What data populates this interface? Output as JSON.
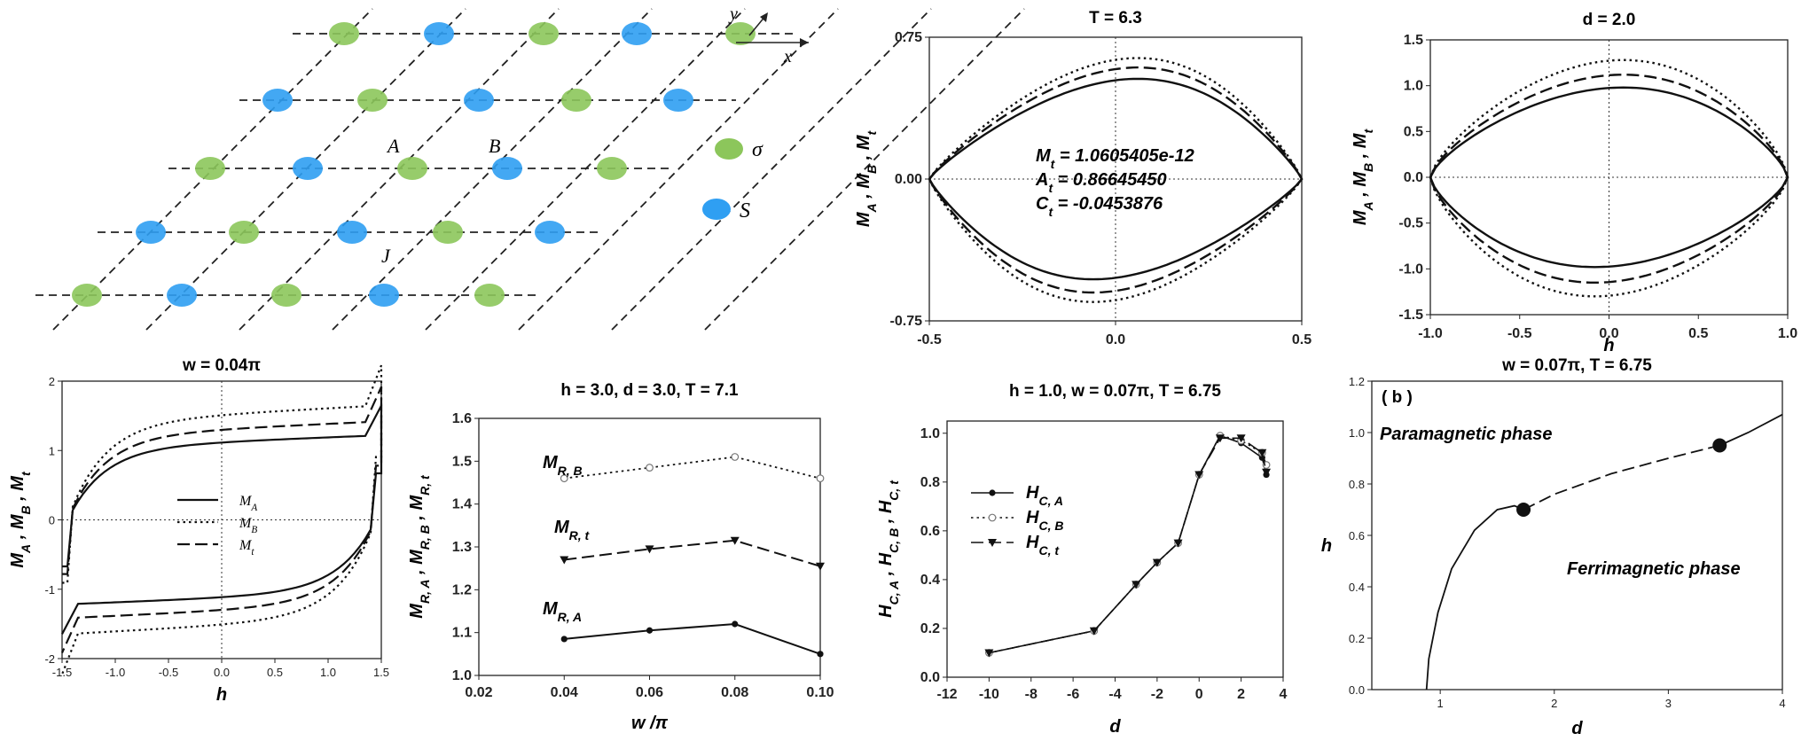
{
  "chart_data": [
    {
      "panel": "lattice",
      "type": "diagram",
      "axis_x": "x",
      "axis_y": "y",
      "site_labels": [
        "A",
        "B",
        "J"
      ],
      "legend": [
        {
          "name": "σ",
          "color": "#8cc65b"
        },
        {
          "name": "S",
          "color": "#2f9ff2"
        }
      ]
    },
    {
      "panel": "T63",
      "type": "line",
      "title": "T = 6.3",
      "ylabel": "M_A , M_B , M_t",
      "xlim": [
        -0.5,
        0.5
      ],
      "ylim": [
        -0.75,
        0.75
      ],
      "xticks": [
        "-0.5",
        "0.0",
        "0.5"
      ],
      "yticks": [
        "-0.75",
        "0.00",
        "0.75"
      ],
      "annotations": [
        "M_t = 1.0605405e-12",
        "A_t = 0.86645450",
        "C_t = -0.0453876"
      ],
      "series": [
        {
          "style": "solid",
          "h_end": 0.5,
          "M_top": 0.53,
          "M_bottom": -0.53
        },
        {
          "style": "dashed",
          "h_end": 0.5,
          "M_top": 0.59,
          "M_bottom": -0.6
        },
        {
          "style": "dotted",
          "h_end": 0.5,
          "M_top": 0.64,
          "M_bottom": -0.65
        }
      ]
    },
    {
      "panel": "d20",
      "type": "line",
      "title": "d = 2.0",
      "ylabel": "M_A , M_B , M_t",
      "xlabel": "h",
      "xlim": [
        -1.0,
        1.0
      ],
      "ylim": [
        -1.5,
        1.5
      ],
      "xticks": [
        "-1.0",
        "-0.5",
        "0.0",
        "0.5",
        "1.0"
      ],
      "yticks": [
        "-1.5",
        "-1.0",
        "-0.5",
        "0.0",
        "0.5",
        "1.0",
        "1.5"
      ],
      "series": [
        {
          "style": "solid",
          "h_end": 1.0,
          "M_top": 0.98,
          "M_bottom": -0.98
        },
        {
          "style": "dashed",
          "h_end": 1.0,
          "M_top": 1.12,
          "M_bottom": -1.15
        },
        {
          "style": "dotted",
          "h_end": 1.0,
          "M_top": 1.28,
          "M_bottom": -1.3
        }
      ]
    },
    {
      "panel": "w004",
      "type": "line",
      "title": "w = 0.04π",
      "xlabel": "h",
      "ylabel": "M_A , M_B , M_t",
      "xlim": [
        -1.5,
        1.5
      ],
      "ylim": [
        -2,
        2
      ],
      "xticks": [
        "-1.5",
        "-1.0",
        "-0.5",
        "0.0",
        "0.5",
        "1.0",
        "1.5"
      ],
      "yticks": [
        "-2",
        "-1",
        "0",
        "1",
        "2"
      ],
      "legend": [
        "M_A",
        "M_B",
        "M_t"
      ],
      "series": [
        {
          "name": "M_A",
          "style": "solid",
          "h_end": 1.5,
          "M_top": 1.22,
          "M_bottom": -1.22
        },
        {
          "name": "M_B",
          "style": "dotted",
          "h_end": 1.5,
          "M_top": 1.65,
          "M_bottom": -1.65
        },
        {
          "name": "M_t",
          "style": "dashed",
          "h_end": 1.5,
          "M_top": 1.42,
          "M_bottom": -1.42
        }
      ]
    },
    {
      "panel": "MR",
      "type": "line",
      "title": "h = 3.0, d = 3.0, T = 7.1",
      "xlabel": "w /π",
      "ylabel": "M_R, A , M_R, B , M_R, t",
      "xlim": [
        0.02,
        0.1
      ],
      "ylim": [
        1.0,
        1.6
      ],
      "xticks": [
        "0.02",
        "0.04",
        "0.06",
        "0.08",
        "0.10"
      ],
      "yticks": [
        "1.0",
        "1.1",
        "1.2",
        "1.3",
        "1.4",
        "1.5",
        "1.6"
      ],
      "x": [
        0.04,
        0.06,
        0.08,
        0.1
      ],
      "series": [
        {
          "name": "M_R, B",
          "style": "dotted",
          "marker": "open-circle",
          "values": [
            1.46,
            1.485,
            1.51,
            1.46
          ]
        },
        {
          "name": "M_R, t",
          "style": "dashed",
          "marker": "triangle",
          "values": [
            1.27,
            1.295,
            1.315,
            1.255
          ]
        },
        {
          "name": "M_R, A",
          "style": "solid",
          "marker": "dot",
          "values": [
            1.085,
            1.105,
            1.12,
            1.05
          ]
        }
      ]
    },
    {
      "panel": "HC",
      "type": "line",
      "title": "h = 1.0, w = 0.07π, T = 6.75",
      "xlabel": "d",
      "ylabel": "H_C, A , H_C, B , H_C, t",
      "xlim": [
        -12,
        4
      ],
      "ylim": [
        0.0,
        1.05
      ],
      "xticks": [
        "-12",
        "-10",
        "-8",
        "-6",
        "-4",
        "-2",
        "0",
        "2",
        "4"
      ],
      "yticks": [
        "0.0",
        "0.2",
        "0.4",
        "0.6",
        "0.8",
        "1.0"
      ],
      "legend": [
        "H_C, A",
        "H_C, B",
        "H_C, t"
      ],
      "series": [
        {
          "name": "H_C, A",
          "style": "solid",
          "marker": "dot",
          "x": [
            -10,
            -5,
            -3,
            -2,
            -1,
            0,
            1,
            2,
            3,
            3.2
          ],
          "values": [
            0.1,
            0.19,
            0.38,
            0.47,
            0.55,
            0.83,
            0.99,
            0.96,
            0.9,
            0.83
          ]
        },
        {
          "name": "H_C, B",
          "style": "dotted",
          "marker": "open-circle",
          "x": [
            -10,
            -5,
            -3,
            -2,
            -1,
            0,
            1,
            2,
            3,
            3.2
          ],
          "values": [
            0.1,
            0.19,
            0.38,
            0.47,
            0.55,
            0.83,
            0.99,
            0.97,
            0.92,
            0.87
          ]
        },
        {
          "name": "H_C, t",
          "style": "dashed",
          "marker": "triangle",
          "x": [
            -10,
            -5,
            -3,
            -2,
            -1,
            0,
            1,
            2,
            3,
            3.2
          ],
          "values": [
            0.1,
            0.19,
            0.38,
            0.47,
            0.55,
            0.83,
            0.98,
            0.98,
            0.92,
            0.84
          ]
        }
      ]
    },
    {
      "panel": "phase",
      "type": "line",
      "title": "w = 0.07π, T = 6.75",
      "panel_label": "( b )",
      "xlabel": "d",
      "ylabel": "h",
      "xlim": [
        0.4,
        4
      ],
      "ylim": [
        0.0,
        1.2
      ],
      "xticks": [
        "1",
        "2",
        "3",
        "4"
      ],
      "yticks": [
        "0.0",
        "0.2",
        "0.4",
        "0.6",
        "0.8",
        "1.0",
        "1.2"
      ],
      "regions": [
        "Paramagnetic phase",
        "Ferrimagnetic phase"
      ],
      "special_points": [
        {
          "d": 1.73,
          "h": 0.7
        },
        {
          "d": 3.45,
          "h": 0.95
        }
      ],
      "series": [
        {
          "style": "solid",
          "x": [
            0.88,
            0.9,
            0.98,
            1.1,
            1.3,
            1.5,
            1.65,
            1.73
          ],
          "values": [
            0.0,
            0.12,
            0.3,
            0.47,
            0.62,
            0.7,
            0.715,
            0.7
          ]
        },
        {
          "style": "dashed",
          "x": [
            1.73,
            2.0,
            2.5,
            3.0,
            3.45
          ],
          "values": [
            0.7,
            0.76,
            0.84,
            0.9,
            0.95
          ]
        },
        {
          "style": "solid",
          "x": [
            3.45,
            3.7,
            4.0
          ],
          "values": [
            0.95,
            1.0,
            1.07
          ]
        }
      ]
    }
  ]
}
